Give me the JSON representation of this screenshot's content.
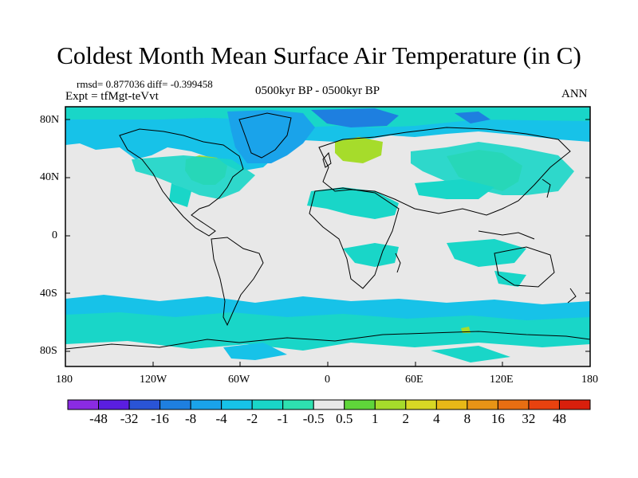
{
  "title": "Coldest Month Mean Surface Air Temperature (in C)",
  "stats": "rmsd= 0.877036 diff= -0.399458",
  "expt": "Expt = tfMgt-teVvt",
  "period": "0500kyr BP - 0500kyr BP",
  "season": "ANN",
  "lat_ticks": [
    "80N",
    "40N",
    "0",
    "40S",
    "80S"
  ],
  "lon_ticks": [
    "180",
    "120W",
    "60W",
    "0",
    "60E",
    "120E",
    "180"
  ],
  "colorbar": {
    "colors": [
      "#8a2be2",
      "#5a1ee0",
      "#2a54d6",
      "#1e7fe0",
      "#1aa3ea",
      "#17c2e8",
      "#19d6c8",
      "#2ee0b0",
      "#e8e8e8",
      "#5fd63a",
      "#a6dc2b",
      "#d8d824",
      "#e8b817",
      "#e89416",
      "#e86e12",
      "#e8420f",
      "#d91f0c"
    ],
    "labels": [
      "-48",
      "-32",
      "-16",
      "-8",
      "-4",
      "-2",
      "-1",
      "-0.5",
      "0.5",
      "1",
      "2",
      "4",
      "8",
      "16",
      "32",
      "48"
    ]
  }
}
